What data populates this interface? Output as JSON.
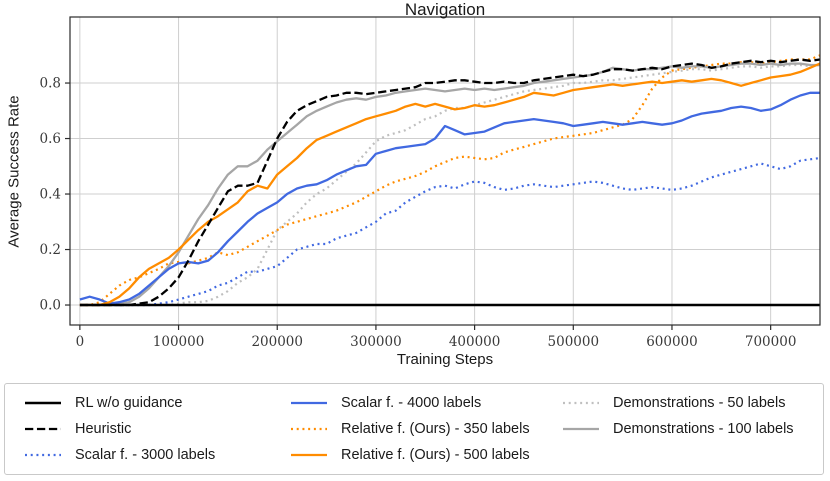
{
  "chart_data": {
    "type": "line",
    "title": "Navigation",
    "xlabel": "Training Steps",
    "ylabel": "Average Success Rate",
    "grid": true,
    "legend_position": "below",
    "xlim": [
      -10000,
      750000
    ],
    "ylim": [
      -0.072,
      1.038
    ],
    "x_tick_values": [
      0,
      100000,
      200000,
      300000,
      400000,
      500000,
      600000,
      700000
    ],
    "x_tick_labels": [
      "0",
      "100000",
      "200000",
      "300000",
      "400000",
      "500000",
      "600000",
      "700000"
    ],
    "y_tick_values": [
      0.0,
      0.2,
      0.4,
      0.6,
      0.8
    ],
    "y_tick_labels": [
      "0.0",
      "0.2",
      "0.4",
      "0.6",
      "0.8"
    ],
    "colors": {
      "black": "#000000",
      "blue": "#4169e1",
      "orange": "#ff8c00",
      "gray_solid": "#a6a6a6",
      "gray_dotted": "#bfbfbf",
      "grid": "#cfcfcf",
      "frame": "#2b2b2b",
      "tick_text": "#3a3a3a"
    },
    "x": [
      0,
      10000,
      20000,
      30000,
      40000,
      50000,
      60000,
      70000,
      80000,
      90000,
      100000,
      110000,
      120000,
      130000,
      140000,
      150000,
      160000,
      170000,
      180000,
      190000,
      200000,
      210000,
      220000,
      230000,
      240000,
      250000,
      260000,
      270000,
      280000,
      290000,
      300000,
      310000,
      320000,
      330000,
      340000,
      350000,
      360000,
      370000,
      380000,
      390000,
      400000,
      410000,
      420000,
      430000,
      440000,
      450000,
      460000,
      470000,
      480000,
      490000,
      500000,
      510000,
      520000,
      530000,
      540000,
      550000,
      560000,
      570000,
      580000,
      590000,
      600000,
      610000,
      620000,
      630000,
      640000,
      650000,
      660000,
      670000,
      680000,
      690000,
      700000,
      710000,
      720000,
      730000,
      740000,
      750000
    ],
    "series": [
      {
        "name": "RL w/o guidance",
        "color": "#000000",
        "style": "solid",
        "width": 2.6,
        "z": 8,
        "values": [
          0,
          0,
          0,
          0,
          0,
          0,
          0,
          0,
          0,
          0,
          0,
          0,
          0,
          0,
          0,
          0,
          0,
          0,
          0,
          0,
          0,
          0,
          0,
          0,
          0,
          0,
          0,
          0,
          0,
          0,
          0,
          0,
          0,
          0,
          0,
          0,
          0,
          0,
          0,
          0,
          0,
          0,
          0,
          0,
          0,
          0,
          0,
          0,
          0,
          0,
          0,
          0,
          0,
          0,
          0,
          0,
          0,
          0,
          0,
          0,
          0,
          0,
          0,
          0,
          0,
          0,
          0,
          0,
          0,
          0,
          0,
          0,
          0,
          0,
          0,
          0
        ]
      },
      {
        "name": "Heuristic",
        "color": "#000000",
        "style": "dashed",
        "width": 2.3,
        "z": 7,
        "values": [
          0,
          0,
          0,
          0,
          0,
          0,
          0.005,
          0.01,
          0.03,
          0.06,
          0.1,
          0.16,
          0.23,
          0.29,
          0.35,
          0.41,
          0.43,
          0.43,
          0.44,
          0.52,
          0.6,
          0.66,
          0.7,
          0.72,
          0.735,
          0.75,
          0.755,
          0.765,
          0.765,
          0.76,
          0.765,
          0.77,
          0.775,
          0.78,
          0.785,
          0.8,
          0.8,
          0.805,
          0.81,
          0.81,
          0.805,
          0.8,
          0.8,
          0.805,
          0.8,
          0.8,
          0.81,
          0.815,
          0.82,
          0.825,
          0.83,
          0.825,
          0.83,
          0.84,
          0.85,
          0.85,
          0.845,
          0.85,
          0.855,
          0.85,
          0.86,
          0.865,
          0.87,
          0.865,
          0.855,
          0.86,
          0.87,
          0.875,
          0.88,
          0.875,
          0.88,
          0.875,
          0.88,
          0.885,
          0.88,
          0.885
        ]
      },
      {
        "name": "Scalar f. - 3000 labels",
        "color": "#4169e1",
        "style": "dotted",
        "width": 2.2,
        "z": 2,
        "values": [
          0,
          0,
          0,
          0,
          0,
          0,
          0,
          0,
          0.005,
          0.01,
          0.02,
          0.03,
          0.04,
          0.05,
          0.07,
          0.08,
          0.1,
          0.12,
          0.12,
          0.13,
          0.14,
          0.17,
          0.2,
          0.21,
          0.22,
          0.22,
          0.24,
          0.25,
          0.26,
          0.28,
          0.3,
          0.33,
          0.34,
          0.37,
          0.39,
          0.41,
          0.425,
          0.43,
          0.42,
          0.435,
          0.445,
          0.44,
          0.425,
          0.415,
          0.42,
          0.43,
          0.435,
          0.43,
          0.425,
          0.43,
          0.435,
          0.44,
          0.445,
          0.44,
          0.43,
          0.42,
          0.415,
          0.42,
          0.425,
          0.42,
          0.415,
          0.42,
          0.43,
          0.445,
          0.46,
          0.47,
          0.48,
          0.49,
          0.5,
          0.51,
          0.5,
          0.49,
          0.5,
          0.52,
          0.525,
          0.53
        ]
      },
      {
        "name": "Scalar f. - 4000 labels",
        "color": "#4169e1",
        "style": "solid",
        "width": 2.3,
        "z": 5,
        "values": [
          0.02,
          0.03,
          0.02,
          0.005,
          0.01,
          0.02,
          0.04,
          0.07,
          0.1,
          0.13,
          0.15,
          0.155,
          0.15,
          0.16,
          0.19,
          0.23,
          0.265,
          0.3,
          0.33,
          0.35,
          0.37,
          0.4,
          0.42,
          0.43,
          0.435,
          0.45,
          0.47,
          0.485,
          0.5,
          0.505,
          0.545,
          0.555,
          0.565,
          0.57,
          0.575,
          0.58,
          0.6,
          0.645,
          0.63,
          0.615,
          0.62,
          0.625,
          0.64,
          0.655,
          0.66,
          0.665,
          0.67,
          0.665,
          0.66,
          0.655,
          0.645,
          0.65,
          0.655,
          0.66,
          0.655,
          0.65,
          0.655,
          0.66,
          0.655,
          0.65,
          0.655,
          0.665,
          0.68,
          0.69,
          0.695,
          0.7,
          0.71,
          0.715,
          0.71,
          0.7,
          0.705,
          0.72,
          0.74,
          0.755,
          0.765,
          0.765
        ]
      },
      {
        "name": "Relative f. (Ours) - 350 labels",
        "color": "#ff8c00",
        "style": "dotted",
        "width": 2.2,
        "z": 3,
        "values": [
          0,
          0,
          0.01,
          0.04,
          0.07,
          0.09,
          0.1,
          0.115,
          0.13,
          0.15,
          0.155,
          0.15,
          0.16,
          0.17,
          0.19,
          0.18,
          0.19,
          0.21,
          0.23,
          0.25,
          0.27,
          0.29,
          0.3,
          0.31,
          0.32,
          0.33,
          0.34,
          0.355,
          0.37,
          0.39,
          0.41,
          0.43,
          0.445,
          0.455,
          0.465,
          0.48,
          0.5,
          0.515,
          0.53,
          0.535,
          0.53,
          0.525,
          0.53,
          0.55,
          0.56,
          0.57,
          0.58,
          0.59,
          0.6,
          0.605,
          0.61,
          0.615,
          0.62,
          0.63,
          0.64,
          0.65,
          0.67,
          0.72,
          0.78,
          0.82,
          0.845,
          0.85,
          0.855,
          0.86,
          0.865,
          0.87,
          0.87,
          0.875,
          0.875,
          0.87,
          0.875,
          0.88,
          0.885,
          0.885,
          0.885,
          0.9
        ]
      },
      {
        "name": "Relative f. (Ours) - 500 labels",
        "color": "#ff8c00",
        "style": "solid",
        "width": 2.3,
        "z": 6,
        "values": [
          0,
          0,
          0,
          0.01,
          0.03,
          0.06,
          0.1,
          0.13,
          0.15,
          0.17,
          0.2,
          0.235,
          0.27,
          0.3,
          0.32,
          0.345,
          0.37,
          0.41,
          0.43,
          0.42,
          0.47,
          0.5,
          0.53,
          0.565,
          0.595,
          0.61,
          0.625,
          0.64,
          0.655,
          0.67,
          0.68,
          0.69,
          0.7,
          0.715,
          0.725,
          0.715,
          0.725,
          0.715,
          0.705,
          0.71,
          0.72,
          0.715,
          0.72,
          0.73,
          0.74,
          0.75,
          0.765,
          0.76,
          0.755,
          0.765,
          0.775,
          0.78,
          0.785,
          0.79,
          0.795,
          0.79,
          0.795,
          0.8,
          0.805,
          0.8,
          0.805,
          0.81,
          0.805,
          0.81,
          0.815,
          0.81,
          0.8,
          0.79,
          0.8,
          0.81,
          0.82,
          0.825,
          0.83,
          0.84,
          0.855,
          0.87
        ]
      },
      {
        "name": "Demonstrations - 50 labels",
        "color": "#bfbfbf",
        "style": "dotted",
        "width": 2.2,
        "z": 1,
        "values": [
          0,
          0,
          0,
          0,
          0,
          0,
          0,
          0,
          0,
          0,
          0.005,
          0.01,
          0.01,
          0.015,
          0.03,
          0.05,
          0.08,
          0.1,
          0.13,
          0.2,
          0.27,
          0.3,
          0.33,
          0.37,
          0.4,
          0.42,
          0.45,
          0.48,
          0.51,
          0.55,
          0.59,
          0.61,
          0.62,
          0.63,
          0.65,
          0.67,
          0.68,
          0.7,
          0.71,
          0.71,
          0.72,
          0.73,
          0.74,
          0.75,
          0.76,
          0.77,
          0.775,
          0.78,
          0.785,
          0.79,
          0.8,
          0.8,
          0.805,
          0.81,
          0.81,
          0.815,
          0.82,
          0.825,
          0.83,
          0.835,
          0.84,
          0.845,
          0.85,
          0.85,
          0.845,
          0.85,
          0.855,
          0.86,
          0.86,
          0.855,
          0.86,
          0.86,
          0.865,
          0.865,
          0.86,
          0.865
        ]
      },
      {
        "name": "Demonstrations - 100 labels",
        "color": "#a6a6a6",
        "style": "solid",
        "width": 2.3,
        "z": 4,
        "values": [
          0,
          0,
          0,
          0,
          0.005,
          0.01,
          0.03,
          0.06,
          0.1,
          0.14,
          0.19,
          0.25,
          0.31,
          0.36,
          0.42,
          0.47,
          0.5,
          0.5,
          0.52,
          0.56,
          0.59,
          0.62,
          0.65,
          0.68,
          0.7,
          0.715,
          0.73,
          0.74,
          0.745,
          0.74,
          0.75,
          0.755,
          0.765,
          0.77,
          0.775,
          0.78,
          0.775,
          0.77,
          0.775,
          0.78,
          0.775,
          0.78,
          0.775,
          0.78,
          0.785,
          0.79,
          0.8,
          0.805,
          0.81,
          0.815,
          0.82,
          0.825,
          0.83,
          0.84,
          0.855,
          0.85,
          0.845,
          0.85,
          0.85,
          0.855,
          0.86,
          0.855,
          0.86,
          0.86,
          0.855,
          0.86,
          0.865,
          0.87,
          0.87,
          0.865,
          0.87,
          0.865,
          0.87,
          0.87,
          0.865,
          0.865
        ]
      }
    ]
  }
}
